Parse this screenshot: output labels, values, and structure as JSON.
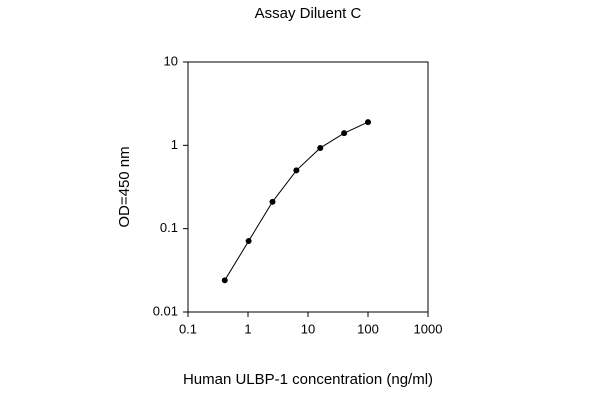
{
  "chart_data": {
    "type": "line",
    "title": "Assay Diluent C",
    "x_label": "Human ULBP-1 concentration (ng/ml)",
    "y_label": "OD=450 nm",
    "x": [
      0.41,
      1.024,
      2.56,
      6.4,
      16,
      40,
      100
    ],
    "series": [
      {
        "color": "#000000",
        "values": [
          0.024,
          0.071,
          0.21,
          0.5,
          0.93,
          1.4,
          1.9
        ]
      }
    ],
    "xlim": [
      0.1,
      1000
    ],
    "ylim": [
      0.01,
      10
    ],
    "xticks": [
      0.1,
      1,
      10,
      100,
      1000
    ],
    "yticks": [
      0.01,
      0.1,
      1,
      10
    ],
    "xscale": "log",
    "yscale": "log",
    "grid": false
  }
}
